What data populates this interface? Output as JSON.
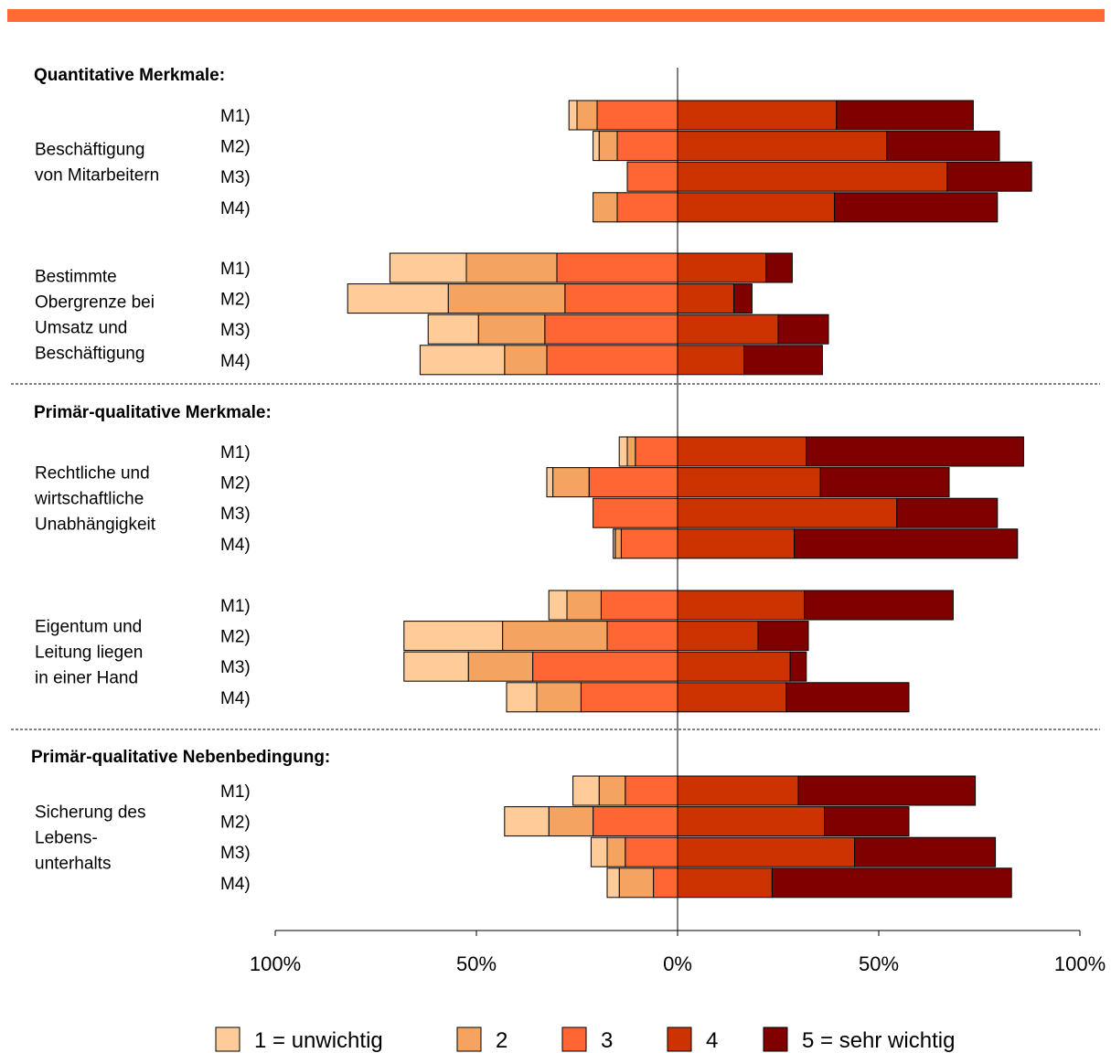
{
  "colors": {
    "top_bar": "#ff6a35",
    "levels": [
      "#ffcc99",
      "#f4a460",
      "#ff6633",
      "#cc3300",
      "#800000"
    ]
  },
  "chart_data": {
    "type": "bar",
    "orientation": "horizontal",
    "stacked": true,
    "diverging": true,
    "xlim": [
      -100,
      100
    ],
    "x_ticks": [
      {
        "value": -100,
        "label": "100%"
      },
      {
        "value": -50,
        "label": "50%"
      },
      {
        "value": 0,
        "label": "0%"
      },
      {
        "value": 50,
        "label": "50%"
      },
      {
        "value": 100,
        "label": "100%"
      }
    ],
    "legend": {
      "placement": "bottom",
      "entries": [
        "1 = unwichtig",
        "2",
        "3",
        "4",
        "5 = sehr wichtig"
      ]
    },
    "series_order_note_levels": [
      "1",
      "2",
      "3",
      "4",
      "5"
    ],
    "sections": [
      {
        "title": "Quantitative Merkmale:",
        "groups": [
          {
            "label_lines": [
              "Beschäftigung",
              "von Mitarbeitern"
            ],
            "rows": [
              {
                "label": "M1)",
                "neg": [
                  2,
                  5,
                  20
                ],
                "pos": [
                  39.5,
                  34
                ]
              },
              {
                "label": "M2)",
                "neg": [
                  1.5,
                  4.5,
                  15
                ],
                "pos": [
                  52,
                  28
                ]
              },
              {
                "label": "M3)",
                "neg": [
                  0,
                  0,
                  12.5
                ],
                "pos": [
                  67,
                  21
                ]
              },
              {
                "label": "M4)",
                "neg": [
                  0,
                  6,
                  15
                ],
                "pos": [
                  39,
                  40.5
                ]
              }
            ]
          },
          {
            "label_lines": [
              "Bestimmte",
              "Obergrenze bei",
              "Umsatz und",
              "Beschäftigung"
            ],
            "rows": [
              {
                "label": "M1)",
                "neg": [
                  19,
                  22.5,
                  30
                ],
                "pos": [
                  22,
                  6.5
                ]
              },
              {
                "label": "M2)",
                "neg": [
                  25,
                  29,
                  28
                ],
                "pos": [
                  14,
                  4.5
                ]
              },
              {
                "label": "M3)",
                "neg": [
                  12.5,
                  16.5,
                  33
                ],
                "pos": [
                  25,
                  12.5
                ]
              },
              {
                "label": "M4)",
                "neg": [
                  21,
                  10.5,
                  32.5
                ],
                "pos": [
                  16.5,
                  19.5
                ]
              }
            ]
          }
        ]
      },
      {
        "title": "Primär-qualitative Merkmale:",
        "groups": [
          {
            "label_lines": [
              "Rechtliche und",
              "wirtschaftliche",
              "Unabhängigkeit"
            ],
            "rows": [
              {
                "label": "M1)",
                "neg": [
                  2,
                  2,
                  10.5
                ],
                "pos": [
                  32,
                  54
                ]
              },
              {
                "label": "M2)",
                "neg": [
                  1.5,
                  9,
                  22
                ],
                "pos": [
                  35.5,
                  32
                ]
              },
              {
                "label": "M3)",
                "neg": [
                  0,
                  0,
                  21
                ],
                "pos": [
                  54.5,
                  25
                ]
              },
              {
                "label": "M4)",
                "neg": [
                  0.5,
                  1.5,
                  14
                ],
                "pos": [
                  29,
                  55.5
                ]
              }
            ]
          },
          {
            "label_lines": [
              "Eigentum und",
              "Leitung liegen",
              "in einer Hand"
            ],
            "rows": [
              {
                "label": "M1)",
                "neg": [
                  4.5,
                  8.5,
                  19
                ],
                "pos": [
                  31.5,
                  37
                ]
              },
              {
                "label": "M2)",
                "neg": [
                  24.5,
                  26,
                  17.5
                ],
                "pos": [
                  20,
                  12.5
                ]
              },
              {
                "label": "M3)",
                "neg": [
                  16,
                  16,
                  36
                ],
                "pos": [
                  28,
                  4
                ]
              },
              {
                "label": "M4)",
                "neg": [
                  7.5,
                  11,
                  24
                ],
                "pos": [
                  27,
                  30.5
                ]
              }
            ]
          }
        ]
      },
      {
        "title": "Primär-qualitative Nebenbedingung:",
        "groups": [
          {
            "label_lines": [
              "Sicherung des",
              "Lebens-",
              "unterhalts"
            ],
            "rows": [
              {
                "label": "M1)",
                "neg": [
                  6.5,
                  6.5,
                  13
                ],
                "pos": [
                  30,
                  44
                ]
              },
              {
                "label": "M2)",
                "neg": [
                  11,
                  11,
                  21
                ],
                "pos": [
                  36.5,
                  21
                ]
              },
              {
                "label": "M3)",
                "neg": [
                  4,
                  4.5,
                  13
                ],
                "pos": [
                  44,
                  35
                ]
              },
              {
                "label": "M4)",
                "neg": [
                  3,
                  8.5,
                  6
                ],
                "pos": [
                  23.5,
                  59.5
                ]
              }
            ]
          }
        ]
      }
    ]
  }
}
